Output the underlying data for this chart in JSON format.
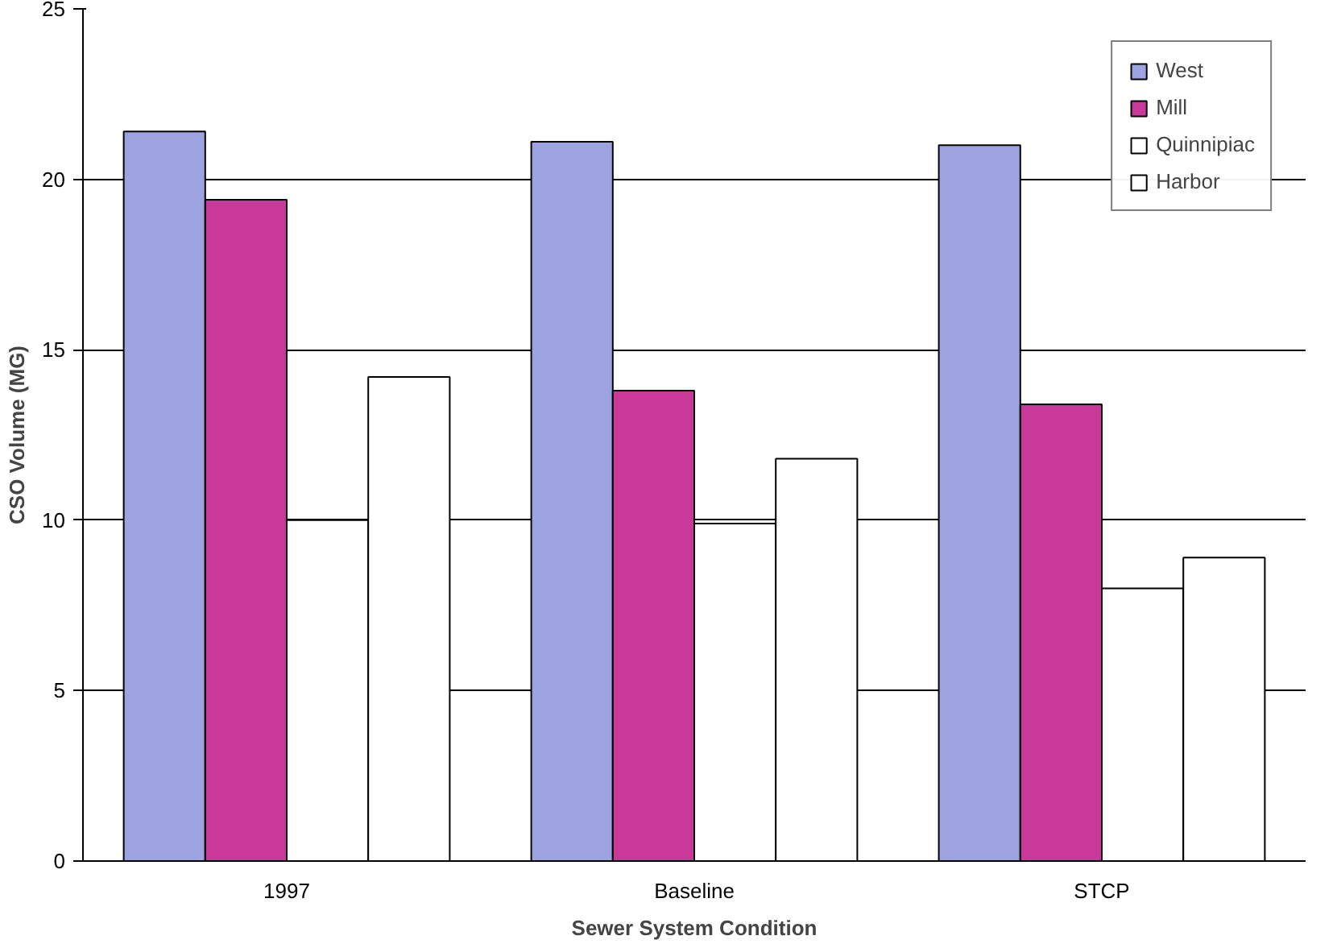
{
  "chart_data": {
    "type": "bar",
    "xlabel": "Sewer System Condition",
    "ylabel": "CSO Volume (MG)",
    "categories": [
      "1997",
      "Baseline",
      "STCP"
    ],
    "series": [
      {
        "name": "West",
        "color": "#9da2e0",
        "values": [
          21.4,
          21.1,
          21.0
        ]
      },
      {
        "name": "Mill",
        "color": "#c8399a",
        "values": [
          19.4,
          13.8,
          13.4
        ]
      },
      {
        "name": "Quinnipiac",
        "color": "#ffffff",
        "values": [
          10.0,
          9.9,
          8.0
        ]
      },
      {
        "name": "Harbor",
        "color": "#ffffff",
        "values": [
          14.2,
          11.8,
          8.9
        ]
      }
    ],
    "ylim": [
      0,
      25
    ],
    "yticks": [
      0,
      5,
      10,
      15,
      20,
      25
    ],
    "grid": "y",
    "legend": "top right"
  }
}
